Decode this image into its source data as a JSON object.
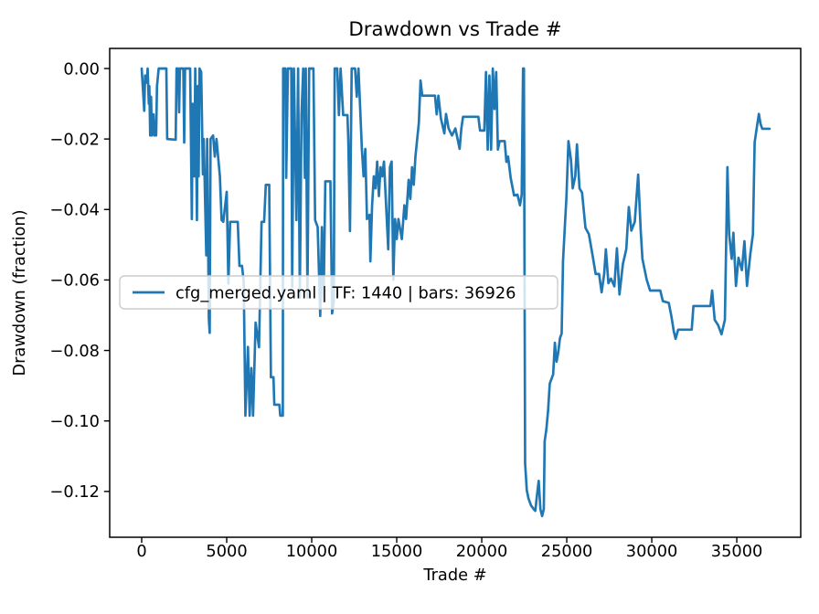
{
  "chart_data": {
    "type": "line",
    "title": "Drawdown vs Trade #",
    "xlabel": "Trade #",
    "ylabel": "Drawdown (fraction)",
    "legend": [
      {
        "label": "cfg_merged.yaml | TF: 1440 | bars: 36926",
        "color": "#1f77b4"
      }
    ],
    "legend_position": "center left",
    "grid": false,
    "line_color": "#1f77b4",
    "axis_color": "#000000",
    "legend_edge_color": "#cccccc",
    "xlim": [
      -1882,
      38760
    ],
    "ylim": [
      -0.133,
      0.0057
    ],
    "x_ticks": [
      {
        "value": 0,
        "label": "0"
      },
      {
        "value": 5000,
        "label": "5000"
      },
      {
        "value": 10000,
        "label": "10000"
      },
      {
        "value": 15000,
        "label": "15000"
      },
      {
        "value": 20000,
        "label": "20000"
      },
      {
        "value": 25000,
        "label": "25000"
      },
      {
        "value": 30000,
        "label": "30000"
      },
      {
        "value": 35000,
        "label": "35000"
      }
    ],
    "y_ticks": [
      {
        "value": 0.0,
        "label": "0.00"
      },
      {
        "value": -0.02,
        "label": "−0.02"
      },
      {
        "value": -0.04,
        "label": "−0.04"
      },
      {
        "value": -0.06,
        "label": "−0.06"
      },
      {
        "value": -0.08,
        "label": "−0.08"
      },
      {
        "value": -0.1,
        "label": "−0.10"
      },
      {
        "value": -0.12,
        "label": "−0.12"
      }
    ],
    "series": [
      {
        "name": "cfg_merged.yaml | TF: 1440 | bars: 36926",
        "points": [
          [
            0,
            0
          ],
          [
            150,
            -0.012
          ],
          [
            200,
            -0.002
          ],
          [
            300,
            -0.004
          ],
          [
            350,
            0
          ],
          [
            420,
            -0.01
          ],
          [
            450,
            -0.005
          ],
          [
            500,
            -0.019
          ],
          [
            550,
            -0.008
          ],
          [
            600,
            -0.019
          ],
          [
            700,
            -0.013
          ],
          [
            750,
            -0.019
          ],
          [
            800,
            -0.015
          ],
          [
            850,
            -0.019
          ],
          [
            900,
            -0.005
          ],
          [
            1000,
            0
          ],
          [
            1450,
            0
          ],
          [
            1500,
            -0.02
          ],
          [
            2000,
            -0.0202
          ],
          [
            2050,
            0
          ],
          [
            2150,
            0
          ],
          [
            2200,
            -0.0124
          ],
          [
            2250,
            0
          ],
          [
            2450,
            0
          ],
          [
            2500,
            -0.021
          ],
          [
            2550,
            0
          ],
          [
            2850,
            0
          ],
          [
            2950,
            -0.0427
          ],
          [
            3000,
            -0.01
          ],
          [
            3100,
            -0.0306
          ],
          [
            3150,
            0
          ],
          [
            3250,
            -0.043
          ],
          [
            3300,
            -0.005
          ],
          [
            3350,
            -0.0306
          ],
          [
            3400,
            0
          ],
          [
            3500,
            -0.001
          ],
          [
            3600,
            -0.03
          ],
          [
            3650,
            -0.02
          ],
          [
            3800,
            -0.053
          ],
          [
            3850,
            -0.02
          ],
          [
            3950,
            -0.071
          ],
          [
            4000,
            -0.075
          ],
          [
            4050,
            -0.02
          ],
          [
            4200,
            -0.019
          ],
          [
            4300,
            -0.025
          ],
          [
            4400,
            -0.02
          ],
          [
            4600,
            -0.0306
          ],
          [
            4700,
            -0.043
          ],
          [
            4800,
            -0.0435
          ],
          [
            5000,
            -0.035
          ],
          [
            5100,
            -0.061
          ],
          [
            5200,
            -0.0435
          ],
          [
            5650,
            -0.0435
          ],
          [
            5750,
            -0.056
          ],
          [
            5900,
            -0.056
          ],
          [
            6000,
            -0.0605
          ],
          [
            6100,
            -0.0985
          ],
          [
            6250,
            -0.079
          ],
          [
            6350,
            -0.0985
          ],
          [
            6450,
            -0.085
          ],
          [
            6550,
            -0.0985
          ],
          [
            6700,
            -0.0721
          ],
          [
            6900,
            -0.0791
          ],
          [
            7050,
            -0.0435
          ],
          [
            7200,
            -0.0435
          ],
          [
            7300,
            -0.033
          ],
          [
            7500,
            -0.033
          ],
          [
            7600,
            -0.0876
          ],
          [
            7750,
            -0.0876
          ],
          [
            7800,
            -0.0954
          ],
          [
            8100,
            -0.0954
          ],
          [
            8150,
            -0.0985
          ],
          [
            8300,
            -0.0985
          ],
          [
            8320,
            0
          ],
          [
            8450,
            0
          ],
          [
            8500,
            -0.031
          ],
          [
            8600,
            0
          ],
          [
            8800,
            0
          ],
          [
            8850,
            -0.062
          ],
          [
            8950,
            0
          ],
          [
            9100,
            -0.043
          ],
          [
            9200,
            0
          ],
          [
            9300,
            -0.065
          ],
          [
            9400,
            -0.013
          ],
          [
            9500,
            0
          ],
          [
            9600,
            -0.031
          ],
          [
            9650,
            0
          ],
          [
            9750,
            -0.065
          ],
          [
            9850,
            0
          ],
          [
            10100,
            0
          ],
          [
            10200,
            -0.043
          ],
          [
            10350,
            -0.045
          ],
          [
            10500,
            -0.0702
          ],
          [
            10600,
            -0.045
          ],
          [
            10700,
            -0.066
          ],
          [
            10800,
            -0.032
          ],
          [
            11100,
            -0.032
          ],
          [
            11200,
            -0.0695
          ],
          [
            11300,
            -0.066
          ],
          [
            11350,
            0
          ],
          [
            11500,
            0
          ],
          [
            11600,
            -0.0132
          ],
          [
            11700,
            0
          ],
          [
            11850,
            -0.0132
          ],
          [
            12100,
            -0.0132
          ],
          [
            12150,
            -0.02
          ],
          [
            12250,
            -0.0461
          ],
          [
            12350,
            0
          ],
          [
            12550,
            0
          ],
          [
            12650,
            -0.008
          ],
          [
            12750,
            0
          ],
          [
            12950,
            -0.0228
          ],
          [
            13050,
            -0.0306
          ],
          [
            13150,
            -0.0228
          ],
          [
            13250,
            -0.0427
          ],
          [
            13400,
            -0.0415
          ],
          [
            13450,
            -0.0547
          ],
          [
            13550,
            -0.039
          ],
          [
            13650,
            -0.0306
          ],
          [
            13750,
            -0.034
          ],
          [
            13850,
            -0.0264
          ],
          [
            13950,
            -0.0362
          ],
          [
            14050,
            -0.028
          ],
          [
            14150,
            -0.0306
          ],
          [
            14250,
            -0.0264
          ],
          [
            14500,
            -0.0513
          ],
          [
            14600,
            -0.028
          ],
          [
            14700,
            -0.0264
          ],
          [
            14800,
            -0.0599
          ],
          [
            14900,
            -0.0427
          ],
          [
            15000,
            -0.0484
          ],
          [
            15100,
            -0.0427
          ],
          [
            15300,
            -0.0484
          ],
          [
            15450,
            -0.0388
          ],
          [
            15550,
            -0.0427
          ],
          [
            15700,
            -0.0316
          ],
          [
            15800,
            -0.037
          ],
          [
            15900,
            -0.028
          ],
          [
            16000,
            -0.033
          ],
          [
            16100,
            -0.025
          ],
          [
            16200,
            -0.0202
          ],
          [
            16300,
            -0.0155
          ],
          [
            16400,
            -0.0034
          ],
          [
            16500,
            -0.0077
          ],
          [
            17250,
            -0.0077
          ],
          [
            17350,
            -0.013
          ],
          [
            17450,
            -0.0077
          ],
          [
            17600,
            -0.0142
          ],
          [
            17800,
            -0.0184
          ],
          [
            17900,
            -0.0129
          ],
          [
            18050,
            -0.017
          ],
          [
            18250,
            -0.019
          ],
          [
            18450,
            -0.017
          ],
          [
            18700,
            -0.0228
          ],
          [
            18800,
            -0.017
          ],
          [
            18900,
            -0.0137
          ],
          [
            19800,
            -0.0137
          ],
          [
            19900,
            -0.0176
          ],
          [
            20150,
            -0.0176
          ],
          [
            20250,
            -0.001
          ],
          [
            20350,
            -0.023
          ],
          [
            20450,
            -0.002
          ],
          [
            20550,
            -0.023
          ],
          [
            20650,
            0
          ],
          [
            20750,
            -0.0115
          ],
          [
            20850,
            -0.001
          ],
          [
            20950,
            -0.023
          ],
          [
            21050,
            -0.0206
          ],
          [
            21350,
            -0.0206
          ],
          [
            21450,
            -0.0265
          ],
          [
            21550,
            -0.025
          ],
          [
            21700,
            -0.031
          ],
          [
            21900,
            -0.036
          ],
          [
            22100,
            -0.0358
          ],
          [
            22250,
            -0.0388
          ],
          [
            22350,
            -0.0358
          ],
          [
            22430,
            0
          ],
          [
            22480,
            0
          ],
          [
            22550,
            -0.112
          ],
          [
            22650,
            -0.1197
          ],
          [
            22750,
            -0.122
          ],
          [
            22900,
            -0.124
          ],
          [
            23050,
            -0.125
          ],
          [
            23150,
            -0.1255
          ],
          [
            23250,
            -0.121
          ],
          [
            23350,
            -0.117
          ],
          [
            23450,
            -0.125
          ],
          [
            23550,
            -0.127
          ],
          [
            23650,
            -0.125
          ],
          [
            23700,
            -0.1058
          ],
          [
            23800,
            -0.1024
          ],
          [
            23900,
            -0.0972
          ],
          [
            24000,
            -0.0894
          ],
          [
            24200,
            -0.0868
          ],
          [
            24300,
            -0.0778
          ],
          [
            24400,
            -0.0832
          ],
          [
            24500,
            -0.0806
          ],
          [
            24600,
            -0.0765
          ],
          [
            24700,
            -0.0752
          ],
          [
            24780,
            -0.0547
          ],
          [
            24880,
            -0.0455
          ],
          [
            24980,
            -0.0366
          ],
          [
            25100,
            -0.0206
          ],
          [
            25250,
            -0.026
          ],
          [
            25350,
            -0.034
          ],
          [
            25500,
            -0.0306
          ],
          [
            25600,
            -0.0215
          ],
          [
            25750,
            -0.034
          ],
          [
            25900,
            -0.0352
          ],
          [
            26100,
            -0.0452
          ],
          [
            26300,
            -0.047
          ],
          [
            26500,
            -0.0525
          ],
          [
            26700,
            -0.0583
          ],
          [
            26900,
            -0.0583
          ],
          [
            27050,
            -0.0635
          ],
          [
            27200,
            -0.0583
          ],
          [
            27300,
            -0.0513
          ],
          [
            27450,
            -0.0609
          ],
          [
            27600,
            -0.0596
          ],
          [
            27800,
            -0.0618
          ],
          [
            27950,
            -0.051
          ],
          [
            28100,
            -0.0641
          ],
          [
            28300,
            -0.0555
          ],
          [
            28500,
            -0.0513
          ],
          [
            28650,
            -0.0393
          ],
          [
            28800,
            -0.046
          ],
          [
            29000,
            -0.0435
          ],
          [
            29200,
            -0.0301
          ],
          [
            29350,
            -0.046
          ],
          [
            29450,
            -0.054
          ],
          [
            29700,
            -0.0599
          ],
          [
            29900,
            -0.063
          ],
          [
            30500,
            -0.063
          ],
          [
            30650,
            -0.066
          ],
          [
            31000,
            -0.0665
          ],
          [
            31150,
            -0.0702
          ],
          [
            31300,
            -0.0747
          ],
          [
            31400,
            -0.0767
          ],
          [
            31550,
            -0.0741
          ],
          [
            32350,
            -0.0741
          ],
          [
            32450,
            -0.0674
          ],
          [
            33450,
            -0.0674
          ],
          [
            33550,
            -0.063
          ],
          [
            33700,
            -0.0713
          ],
          [
            33900,
            -0.0728
          ],
          [
            34100,
            -0.0754
          ],
          [
            34300,
            -0.0713
          ],
          [
            34450,
            -0.028
          ],
          [
            34550,
            -0.047
          ],
          [
            34700,
            -0.054
          ],
          [
            34800,
            -0.0466
          ],
          [
            34950,
            -0.0617
          ],
          [
            35100,
            -0.0537
          ],
          [
            35300,
            -0.0572
          ],
          [
            35450,
            -0.049
          ],
          [
            35600,
            -0.0617
          ],
          [
            35800,
            -0.0525
          ],
          [
            35950,
            -0.047
          ],
          [
            36050,
            -0.021
          ],
          [
            36200,
            -0.016
          ],
          [
            36300,
            -0.0129
          ],
          [
            36400,
            -0.0158
          ],
          [
            36500,
            -0.0171
          ],
          [
            36925,
            -0.0171
          ]
        ]
      }
    ]
  }
}
